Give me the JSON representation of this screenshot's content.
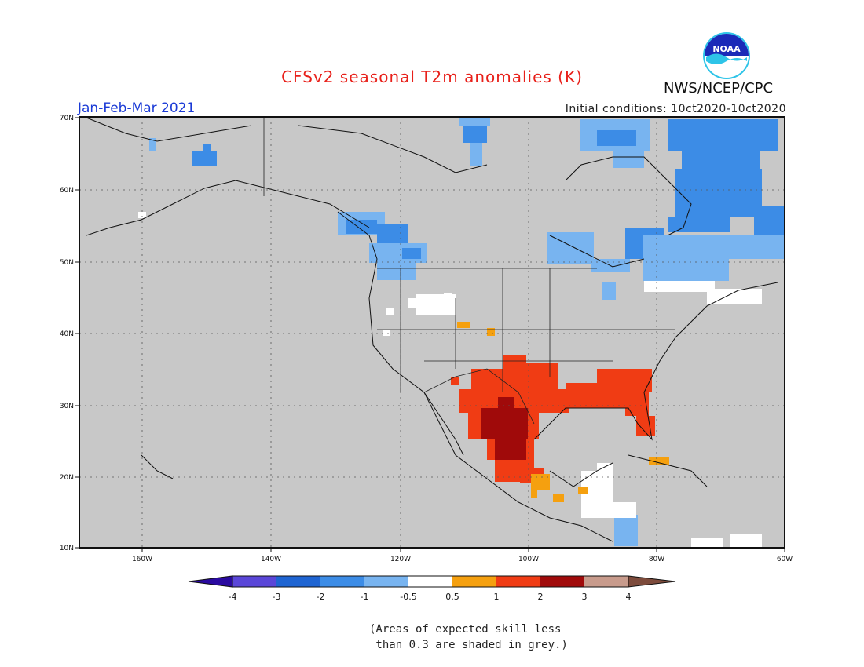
{
  "header": {
    "title": "CFSv2 seasonal T2m anomalies (K)",
    "period": "Jan-Feb-Mar 2021",
    "initial_conditions": "Initial conditions: 10ct2020-10ct2020",
    "agency": "NWS/NCEP/CPC",
    "logo_text": "NOAA"
  },
  "map": {
    "lat_labels": [
      "70N",
      "60N",
      "50N",
      "40N",
      "30N",
      "20N",
      "10N"
    ],
    "lon_labels": [
      "160W",
      "140W",
      "120W",
      "100W",
      "80W",
      "60W"
    ],
    "background_color": "#c8c8c8"
  },
  "colorbar": {
    "labels": [
      "-4",
      "-3",
      "-2",
      "-1",
      "-0.5",
      "0.5",
      "1",
      "2",
      "3",
      "4"
    ],
    "colors": [
      "#2a0aa0",
      "#5a46d8",
      "#1e64d2",
      "#3c8ce6",
      "#78b4f0",
      "#ffffff",
      "#f5a00f",
      "#f03c14",
      "#a00a0a",
      "#c89b8c",
      "#7d4b3c"
    ]
  },
  "footnote": {
    "line1": "(Areas of expected skill less",
    "line2": " than 0.3 are shaded in grey.)"
  }
}
